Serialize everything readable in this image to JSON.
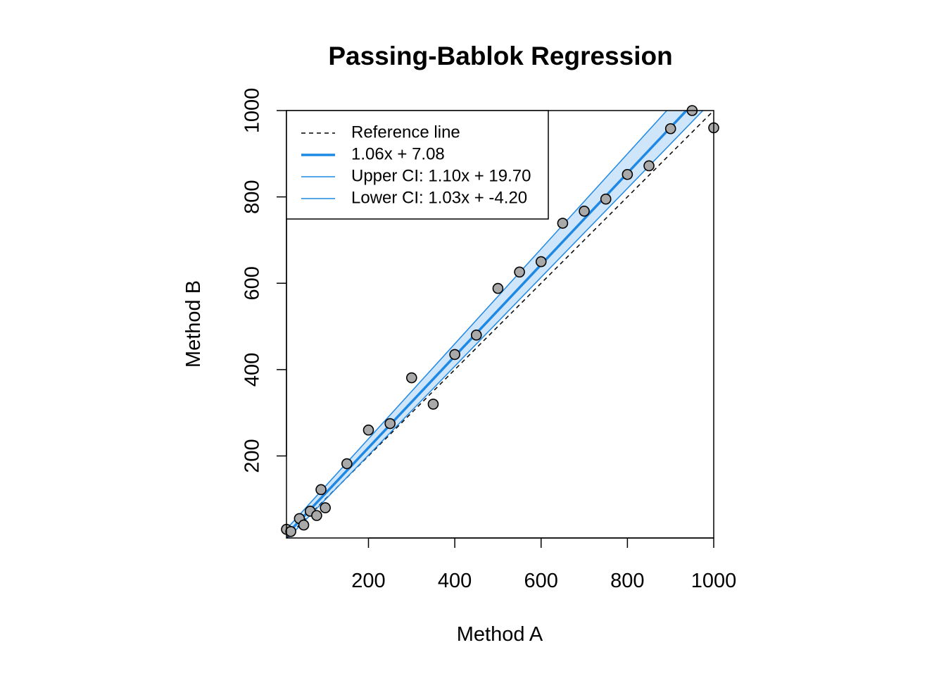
{
  "chart_data": {
    "type": "scatter",
    "title": "Passing-Bablok Regression",
    "xlabel": "Method A",
    "ylabel": "Method B",
    "xlim": [
      10,
      1000
    ],
    "ylim": [
      10,
      1000
    ],
    "xticks": [
      200,
      400,
      600,
      800,
      1000
    ],
    "yticks": [
      200,
      400,
      600,
      800,
      1000
    ],
    "x_tick_labels": [
      "200",
      "400",
      "600",
      "800",
      "1000"
    ],
    "y_tick_labels": [
      "200",
      "400",
      "600",
      "800",
      "1000"
    ],
    "grid": false,
    "legend_position": "top-left",
    "points": {
      "x": [
        10,
        20,
        40,
        50,
        65,
        80,
        90,
        100,
        150,
        200,
        250,
        300,
        350,
        400,
        450,
        500,
        550,
        600,
        650,
        700,
        750,
        800,
        850,
        900,
        950,
        1000
      ],
      "y": [
        30,
        25,
        55,
        40,
        72,
        62,
        122,
        80,
        182,
        260,
        275,
        381,
        320,
        435,
        480,
        588,
        626,
        650,
        739,
        767,
        795,
        852,
        872,
        958,
        1000,
        960
      ]
    },
    "lines": {
      "reference": {
        "slope": 1.0,
        "intercept": 0.0
      },
      "fit": {
        "slope": 1.06,
        "intercept": 7.08
      },
      "upper_ci": {
        "slope": 1.1,
        "intercept": 19.7
      },
      "lower_ci": {
        "slope": 1.03,
        "intercept": -4.2
      }
    },
    "legend": [
      {
        "label": "Reference line",
        "style": "dashed",
        "color": "#000000"
      },
      {
        "label": "1.06x + 7.08",
        "style": "solid-thick",
        "color": "#1e88e5"
      },
      {
        "label": "Upper CI: 1.10x + 19.70",
        "style": "solid-thin",
        "color": "#1e88e5"
      },
      {
        "label": "Lower CI: 1.03x + -4.20",
        "style": "solid-thin",
        "color": "#1e88e5"
      }
    ],
    "colors": {
      "fit_line": "#1e88e5",
      "ci_band": "#cfe5fa",
      "point_fill": "#a9a9a9",
      "point_stroke": "#000000"
    }
  }
}
